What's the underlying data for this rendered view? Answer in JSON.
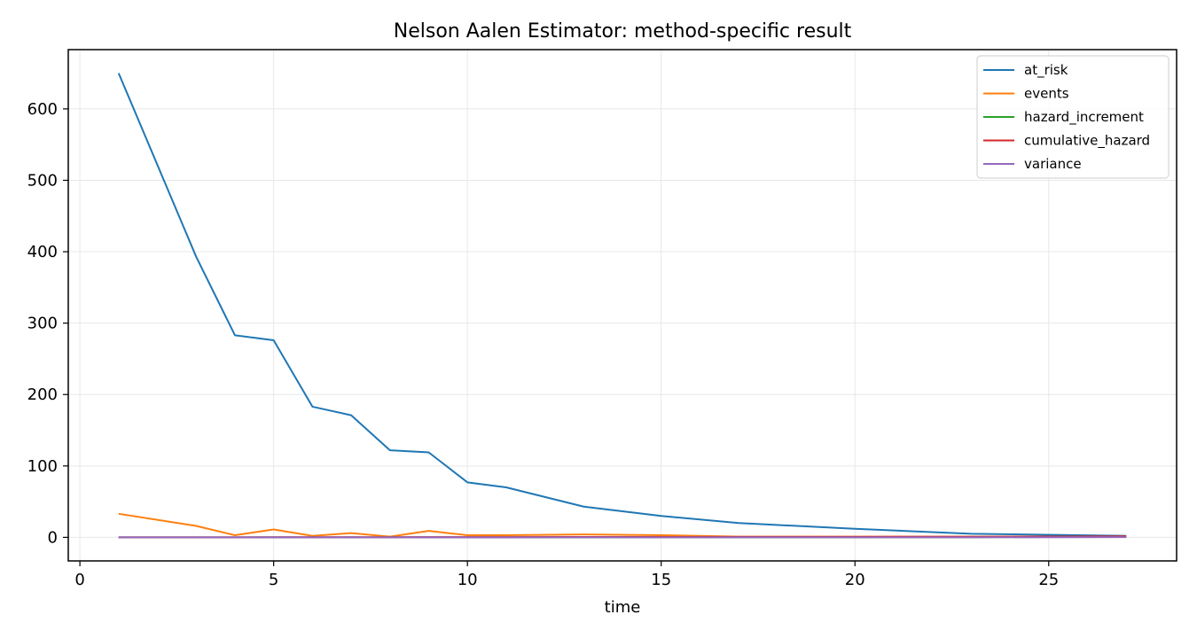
{
  "chart_data": {
    "type": "line",
    "title": "Nelson Aalen Estimator: method-specific result",
    "xlabel": "time",
    "ylabel": "",
    "xlim": [
      -0.3,
      28.3
    ],
    "ylim": [
      -33,
      683
    ],
    "xticks": [
      0,
      5,
      10,
      15,
      20,
      25
    ],
    "yticks": [
      0,
      100,
      200,
      300,
      400,
      500,
      600
    ],
    "grid": true,
    "legend_position": "top-right",
    "x": [
      1,
      3,
      4,
      5,
      6,
      7,
      8,
      9,
      10,
      11,
      13,
      15,
      17,
      20,
      23,
      27
    ],
    "series": [
      {
        "name": "at_risk",
        "color": "#1f77b4",
        "values": [
          650,
          393,
          283,
          276,
          183,
          171,
          122,
          119,
          77,
          70,
          43,
          30,
          20,
          12,
          5,
          2
        ]
      },
      {
        "name": "events",
        "color": "#ff7f0e",
        "values": [
          33,
          16,
          3,
          11,
          2,
          6,
          1,
          9,
          3,
          3,
          4,
          3,
          1,
          1,
          1,
          1
        ]
      },
      {
        "name": "hazard_increment",
        "color": "#2ca02c",
        "values": [
          0.05,
          0.04,
          0.01,
          0.04,
          0.01,
          0.04,
          0.01,
          0.08,
          0.04,
          0.04,
          0.09,
          0.1,
          0.05,
          0.08,
          0.2,
          0.5
        ]
      },
      {
        "name": "cumulative_hazard",
        "color": "#d62728",
        "values": [
          0.05,
          0.09,
          0.1,
          0.14,
          0.15,
          0.19,
          0.2,
          0.28,
          0.32,
          0.36,
          0.45,
          0.55,
          0.6,
          0.68,
          0.88,
          1.38
        ]
      },
      {
        "name": "variance",
        "color": "#9467bd",
        "values": [
          0.0,
          0.0,
          0.0,
          0.0,
          0.0,
          0.0,
          0.0,
          0.0,
          0.0,
          0.01,
          0.01,
          0.01,
          0.01,
          0.02,
          0.04,
          0.3
        ]
      }
    ]
  }
}
